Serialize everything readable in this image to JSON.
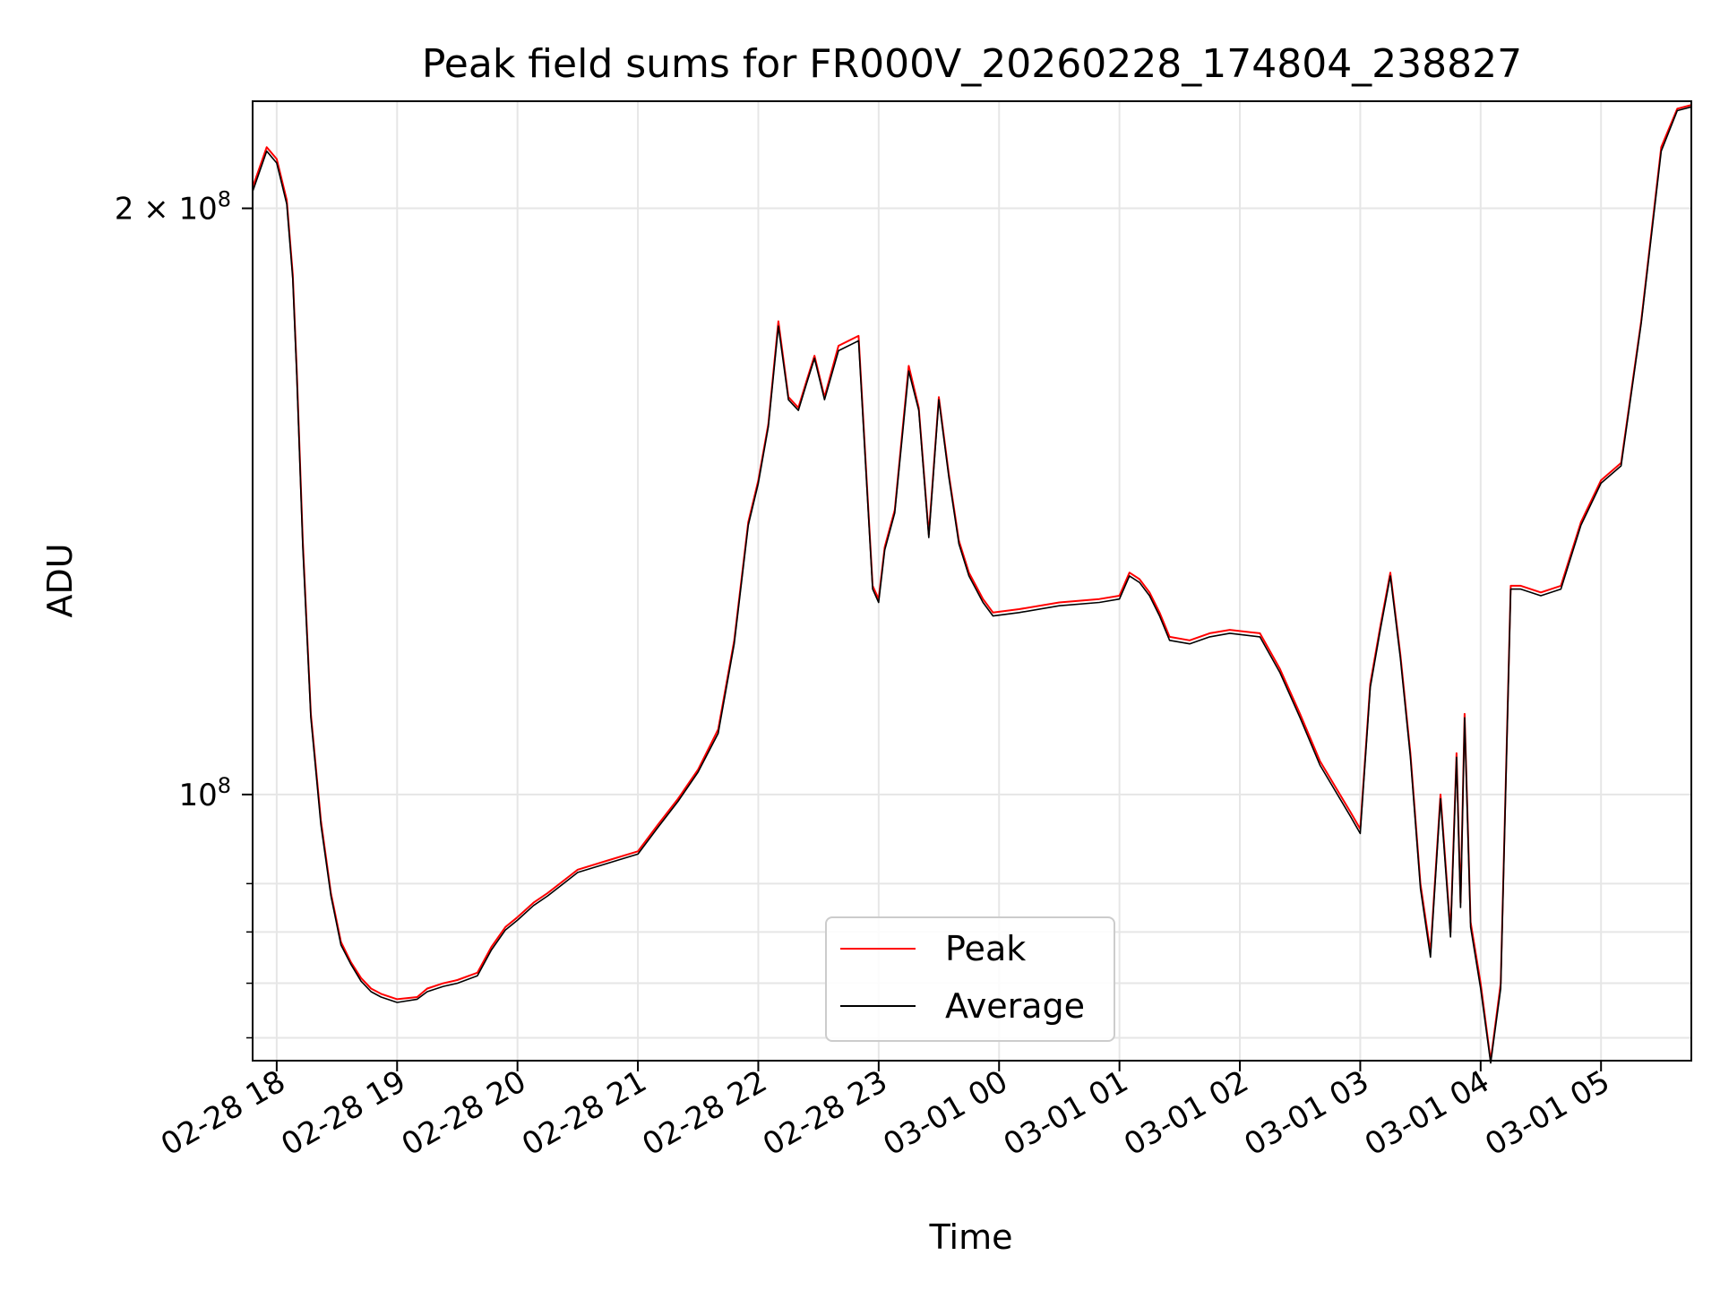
{
  "chart_data": {
    "type": "line",
    "title": "Peak field sums for FR000V_20260228_174804_238827",
    "xlabel": "Time",
    "ylabel": "ADU",
    "y_scale": "log",
    "ylim": [
      73000000,
      227000000
    ],
    "xlim": [
      "02-28 17:48",
      "03-01 05:45"
    ],
    "x_ticks": [
      "02-28 18",
      "02-28 19",
      "02-28 20",
      "02-28 21",
      "02-28 22",
      "02-28 23",
      "03-01 00",
      "03-01 01",
      "03-01 02",
      "03-01 03",
      "03-01 04",
      "03-01 05"
    ],
    "y_ticks": [
      {
        "value": 100000000,
        "base": "10",
        "exp": "8"
      },
      {
        "value": 200000000,
        "base": "2 × 10",
        "exp": "8"
      }
    ],
    "y_minor_ticks": [
      75000000,
      80000000,
      85000000,
      90000000
    ],
    "grid": true,
    "legend_position": "lower-center",
    "series": [
      {
        "name": "Peak",
        "color": "#ff0000",
        "x": [
          "02-28 17:48",
          "02-28 17:55",
          "02-28 18:00",
          "02-28 18:05",
          "02-28 18:08",
          "02-28 18:10",
          "02-28 18:13",
          "02-28 18:17",
          "02-28 18:22",
          "02-28 18:27",
          "02-28 18:32",
          "02-28 18:37",
          "02-28 18:42",
          "02-28 18:47",
          "02-28 18:52",
          "02-28 19:00",
          "02-28 19:10",
          "02-28 19:15",
          "02-28 19:23",
          "02-28 19:30",
          "02-28 19:40",
          "02-28 19:47",
          "02-28 19:54",
          "02-28 20:00",
          "02-28 20:08",
          "02-28 20:15",
          "02-28 20:30",
          "02-28 20:45",
          "02-28 21:00",
          "02-28 21:10",
          "02-28 21:20",
          "02-28 21:30",
          "02-28 21:40",
          "02-28 21:48",
          "02-28 21:55",
          "02-28 22:00",
          "02-28 22:05",
          "02-28 22:10",
          "02-28 22:15",
          "02-28 22:20",
          "02-28 22:24",
          "02-28 22:28",
          "02-28 22:33",
          "02-28 22:40",
          "02-28 22:50",
          "02-28 22:57",
          "02-28 23:00",
          "02-28 23:03",
          "02-28 23:08",
          "02-28 23:15",
          "02-28 23:20",
          "02-28 23:25",
          "02-28 23:30",
          "02-28 23:35",
          "02-28 23:40",
          "02-28 23:45",
          "02-28 23:52",
          "02-28 23:57",
          "03-01 00:10",
          "03-01 00:30",
          "03-01 00:50",
          "03-01 01:00",
          "03-01 01:05",
          "03-01 01:10",
          "03-01 01:15",
          "03-01 01:20",
          "03-01 01:25",
          "03-01 01:35",
          "03-01 01:45",
          "03-01 01:55",
          "03-01 02:10",
          "03-01 02:20",
          "03-01 02:30",
          "03-01 02:40",
          "03-01 02:55",
          "03-01 03:00",
          "03-01 03:05",
          "03-01 03:10",
          "03-01 03:15",
          "03-01 03:20",
          "03-01 03:25",
          "03-01 03:30",
          "03-01 03:35",
          "03-01 03:40",
          "03-01 03:45",
          "03-01 03:48",
          "03-01 03:50",
          "03-01 03:52",
          "03-01 03:55",
          "03-01 04:00",
          "03-01 04:05",
          "03-01 04:10",
          "03-01 04:15",
          "03-01 04:20",
          "03-01 04:30",
          "03-01 04:40",
          "03-01 04:50",
          "03-01 05:00",
          "03-01 05:10",
          "03-01 05:20",
          "03-01 05:30",
          "03-01 05:38",
          "03-01 05:45"
        ],
        "y": [
          205000000,
          215000000,
          212000000,
          202000000,
          185000000,
          165000000,
          135000000,
          110000000,
          97000000,
          89000000,
          84000000,
          82000000,
          80500000,
          79500000,
          79000000,
          78500000,
          78700000,
          79500000,
          80000000,
          80300000,
          81000000,
          83500000,
          85500000,
          86500000,
          88000000,
          89000000,
          91500000,
          92500000,
          93500000,
          96500000,
          99500000,
          103000000,
          108000000,
          120000000,
          138000000,
          145000000,
          155000000,
          175000000,
          160000000,
          158000000,
          163000000,
          168000000,
          160000000,
          170000000,
          172000000,
          128000000,
          126000000,
          134000000,
          140000000,
          166000000,
          158000000,
          136000000,
          160000000,
          146000000,
          135000000,
          130000000,
          126000000,
          124000000,
          124500000,
          125500000,
          126000000,
          126500000,
          130000000,
          129000000,
          127000000,
          124000000,
          120500000,
          120000000,
          121000000,
          121500000,
          121000000,
          116000000,
          110000000,
          104000000,
          98000000,
          96000000,
          114000000,
          122000000,
          130000000,
          118000000,
          105000000,
          90000000,
          83000000,
          100000000,
          85000000,
          105000000,
          88000000,
          110000000,
          86000000,
          80000000,
          73000000,
          80000000,
          128000000,
          128000000,
          127000000,
          128000000,
          138000000,
          145000000,
          148000000,
          175000000,
          215000000,
          225000000,
          226000000
        ]
      },
      {
        "name": "Average",
        "color": "#000000",
        "x": [
          "02-28 17:48",
          "02-28 17:55",
          "02-28 18:00",
          "02-28 18:05",
          "02-28 18:08",
          "02-28 18:10",
          "02-28 18:13",
          "02-28 18:17",
          "02-28 18:22",
          "02-28 18:27",
          "02-28 18:32",
          "02-28 18:37",
          "02-28 18:42",
          "02-28 18:47",
          "02-28 18:52",
          "02-28 19:00",
          "02-28 19:10",
          "02-28 19:15",
          "02-28 19:23",
          "02-28 19:30",
          "02-28 19:40",
          "02-28 19:47",
          "02-28 19:54",
          "02-28 20:00",
          "02-28 20:08",
          "02-28 20:15",
          "02-28 20:30",
          "02-28 20:45",
          "02-28 21:00",
          "02-28 21:10",
          "02-28 21:20",
          "02-28 21:30",
          "02-28 21:40",
          "02-28 21:48",
          "02-28 21:55",
          "02-28 22:00",
          "02-28 22:05",
          "02-28 22:10",
          "02-28 22:15",
          "02-28 22:20",
          "02-28 22:24",
          "02-28 22:28",
          "02-28 22:33",
          "02-28 22:40",
          "02-28 22:50",
          "02-28 22:57",
          "02-28 23:00",
          "02-28 23:03",
          "02-28 23:08",
          "02-28 23:15",
          "02-28 23:20",
          "02-28 23:25",
          "02-28 23:30",
          "02-28 23:35",
          "02-28 23:40",
          "02-28 23:45",
          "02-28 23:52",
          "02-28 23:57",
          "03-01 00:10",
          "03-01 00:30",
          "03-01 00:50",
          "03-01 01:00",
          "03-01 01:05",
          "03-01 01:10",
          "03-01 01:15",
          "03-01 01:20",
          "03-01 01:25",
          "03-01 01:35",
          "03-01 01:45",
          "03-01 01:55",
          "03-01 02:10",
          "03-01 02:20",
          "03-01 02:30",
          "03-01 02:40",
          "03-01 02:55",
          "03-01 03:00",
          "03-01 03:05",
          "03-01 03:10",
          "03-01 03:15",
          "03-01 03:20",
          "03-01 03:25",
          "03-01 03:30",
          "03-01 03:35",
          "03-01 03:40",
          "03-01 03:45",
          "03-01 03:48",
          "03-01 03:50",
          "03-01 03:52",
          "03-01 03:55",
          "03-01 04:00",
          "03-01 04:05",
          "03-01 04:10",
          "03-01 04:15",
          "03-01 04:20",
          "03-01 04:30",
          "03-01 04:40",
          "03-01 04:50",
          "03-01 05:00",
          "03-01 05:10",
          "03-01 05:20",
          "03-01 05:30",
          "03-01 05:38",
          "03-01 05:45"
        ],
        "y": [
          204000000,
          214000000,
          211000000,
          201000000,
          184000000,
          164000000,
          134000000,
          109500000,
          96500000,
          88700000,
          83700000,
          81800000,
          80200000,
          79200000,
          78700000,
          78200000,
          78500000,
          79200000,
          79700000,
          80000000,
          80700000,
          83200000,
          85200000,
          86200000,
          87700000,
          88700000,
          91200000,
          92200000,
          93200000,
          96200000,
          99200000,
          102700000,
          107500000,
          119500000,
          137500000,
          144500000,
          154500000,
          174000000,
          159500000,
          157500000,
          162500000,
          167500000,
          159500000,
          169000000,
          171000000,
          127500000,
          125500000,
          133500000,
          139500000,
          165000000,
          157500000,
          135500000,
          159500000,
          145500000,
          134500000,
          129500000,
          125500000,
          123500000,
          124000000,
          125000000,
          125500000,
          126000000,
          129500000,
          128500000,
          126500000,
          123500000,
          120000000,
          119500000,
          120500000,
          121000000,
          120500000,
          115500000,
          109500000,
          103500000,
          97500000,
          95500000,
          113500000,
          121500000,
          129500000,
          117500000,
          104500000,
          89500000,
          82500000,
          99500000,
          84500000,
          104500000,
          87500000,
          109500000,
          85500000,
          79500000,
          72800000,
          79500000,
          127500000,
          127500000,
          126500000,
          127500000,
          137500000,
          144500000,
          147500000,
          174500000,
          214000000,
          224500000,
          225500000
        ]
      }
    ]
  }
}
